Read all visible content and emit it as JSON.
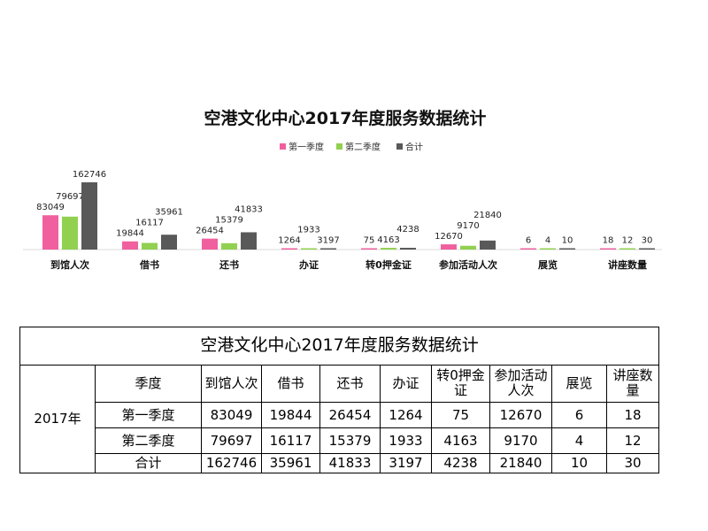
{
  "chart_data": {
    "type": "bar",
    "title": "空港文化中心2017年度服务数据统计",
    "categories": [
      "到馆人次",
      "借书",
      "还书",
      "办证",
      "转0押金证",
      "参加活动人次",
      "展览",
      "讲座数量"
    ],
    "series": [
      {
        "name": "第一季度",
        "color": "#f0609e",
        "values": [
          83049,
          19844,
          26454,
          1264,
          75,
          12670,
          6,
          18
        ]
      },
      {
        "name": "第二季度",
        "color": "#92d050",
        "values": [
          79697,
          16117,
          15379,
          1933,
          4163,
          9170,
          4,
          12
        ]
      },
      {
        "name": "合计",
        "color": "#595959",
        "values": [
          162746,
          35961,
          41833,
          3197,
          4238,
          21840,
          10,
          30
        ]
      }
    ],
    "ylim": [
      0,
      162746
    ],
    "legend_position": "top-center",
    "grid": false,
    "xlabel": "",
    "ylabel": ""
  },
  "table": {
    "title": "空港文化中心2017年度服务数据统计",
    "year_label": "2017年",
    "headers": [
      "季度",
      "到馆人次",
      "借书",
      "还书",
      "办证",
      "转0押金证",
      "参加活动人次",
      "展览",
      "讲座数量"
    ],
    "rows": [
      [
        "第一季度",
        "83049",
        "19844",
        "26454",
        "1264",
        "75",
        "12670",
        "6",
        "18"
      ],
      [
        "第二季度",
        "79697",
        "16117",
        "15379",
        "1933",
        "4163",
        "9170",
        "4",
        "12"
      ],
      [
        "合计",
        "162746",
        "35961",
        "41833",
        "3197",
        "4238",
        "21840",
        "10",
        "30"
      ]
    ]
  }
}
